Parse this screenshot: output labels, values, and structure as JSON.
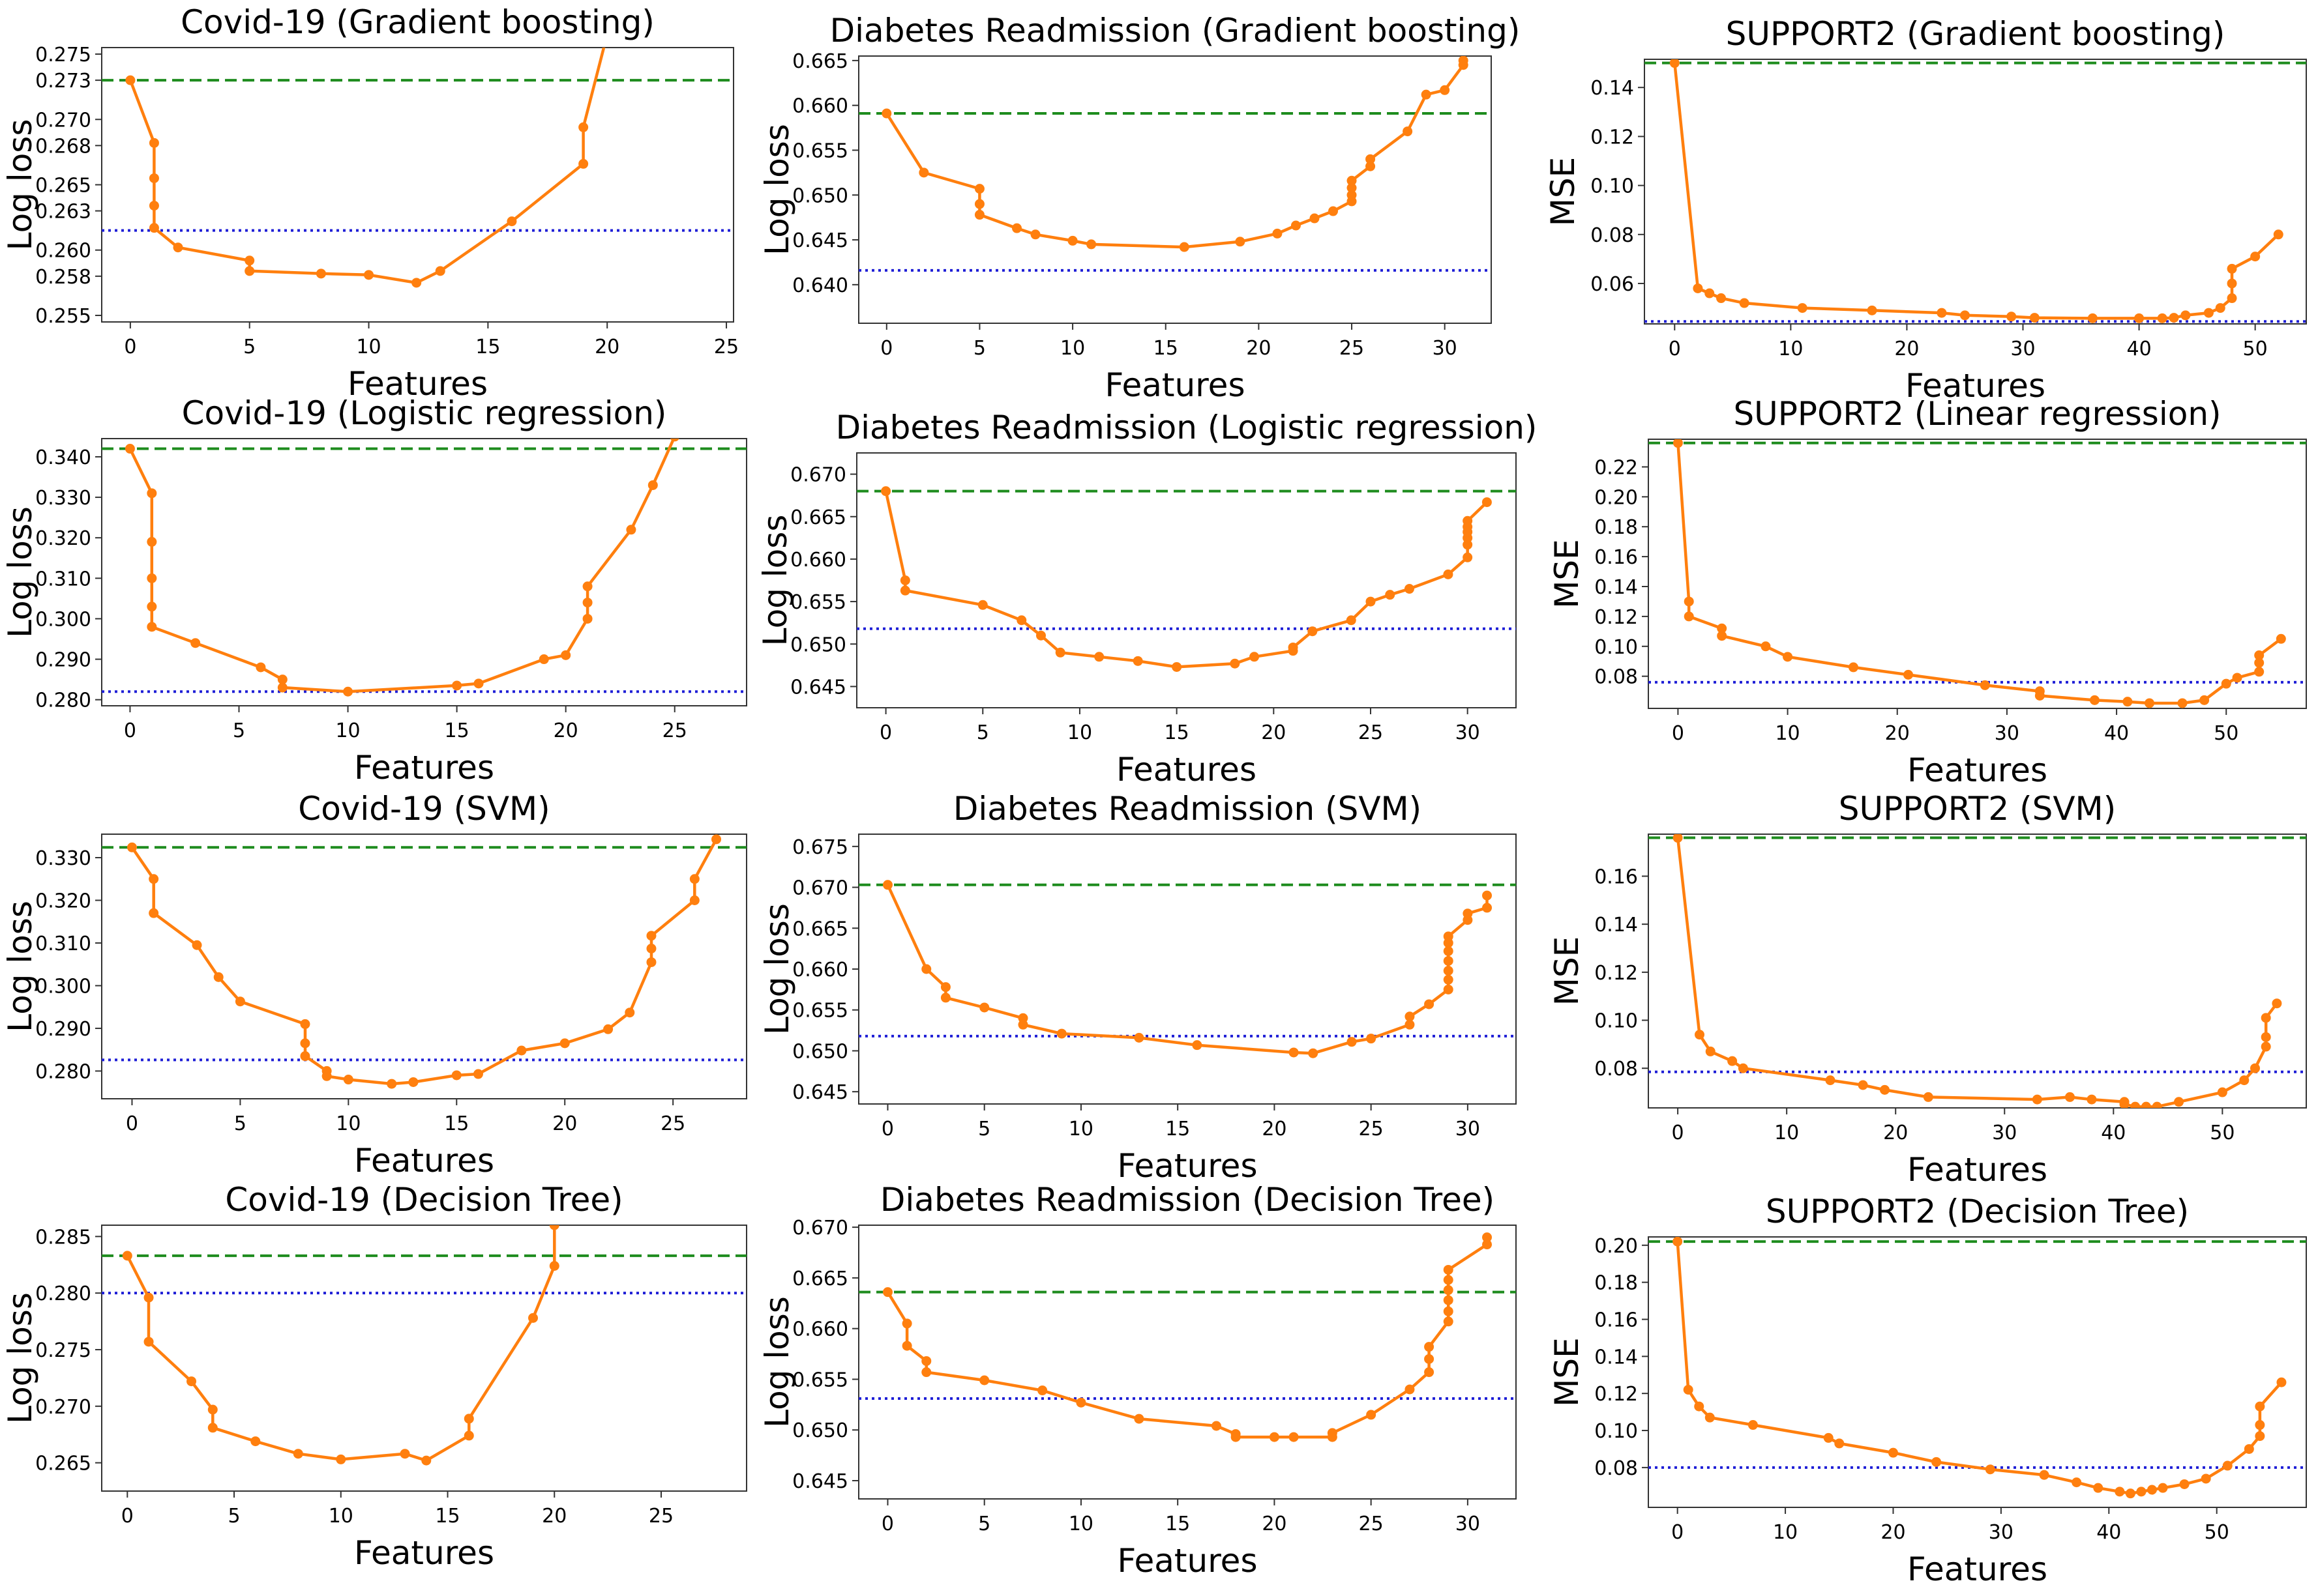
{
  "colors": {
    "line": "#ff7f0e",
    "initial": "#1e8c1e",
    "best": "#1f1fd6",
    "axis": "#333333"
  },
  "chart_data": [
    {
      "type": "line",
      "title": "Covid-19 (Gradient boosting)",
      "xlabel": "Features",
      "ylabel": "Log loss",
      "xlim": [
        -1.2,
        25.3
      ],
      "ylim": [
        0.2545,
        0.2755
      ],
      "xticks": [
        0,
        5,
        10,
        15,
        20,
        25
      ],
      "yticks": [
        0.255,
        0.258,
        0.26,
        0.263,
        0.265,
        0.268,
        0.27,
        0.273,
        0.275
      ],
      "yticklabels": [
        "0.255",
        "0.258",
        "0.260",
        "0.263",
        "0.265",
        "0.268",
        "0.270",
        "0.273",
        "0.275"
      ],
      "initial": 0.273,
      "best": 0.2615,
      "series": [
        {
          "x": [
            0,
            1,
            1,
            1,
            1,
            2,
            5,
            5,
            8,
            10,
            12,
            13,
            16,
            19,
            19,
            20
          ],
          "y": [
            0.273,
            0.2682,
            0.2655,
            0.2634,
            0.2617,
            0.2602,
            0.2592,
            0.2584,
            0.2582,
            0.2581,
            0.2575,
            0.2584,
            0.2622,
            0.2666,
            0.2694,
            0.2765
          ]
        }
      ]
    },
    {
      "type": "line",
      "title": "Diabetes Readmission (Gradient boosting)",
      "xlabel": "Features",
      "ylabel": "Log loss",
      "xlim": [
        -1.5,
        32.5
      ],
      "ylim": [
        0.6357,
        0.6655
      ],
      "xticks": [
        0,
        5,
        10,
        15,
        20,
        25,
        30
      ],
      "yticks": [
        0.64,
        0.645,
        0.65,
        0.655,
        0.66,
        0.665
      ],
      "yticklabels": [
        "0.640",
        "0.645",
        "0.650",
        "0.655",
        "0.660",
        "0.665"
      ],
      "initial": 0.6591,
      "best": 0.6416,
      "series": [
        {
          "x": [
            0,
            2,
            5,
            5,
            5,
            7,
            8,
            10,
            11,
            16,
            19,
            21,
            22,
            23,
            24,
            25,
            25,
            25,
            25,
            26,
            26,
            28,
            29,
            30,
            31,
            31
          ],
          "y": [
            0.6591,
            0.6525,
            0.6507,
            0.649,
            0.6478,
            0.6463,
            0.6456,
            0.6449,
            0.6445,
            0.6442,
            0.6448,
            0.6457,
            0.6466,
            0.6474,
            0.6482,
            0.6493,
            0.65,
            0.6508,
            0.6516,
            0.6532,
            0.654,
            0.6571,
            0.6612,
            0.6617,
            0.6645,
            0.665
          ]
        }
      ]
    },
    {
      "type": "line",
      "title": "SUPPORT2 (Gradient boosting)",
      "xlabel": "Features",
      "ylabel": "MSE",
      "xlim": [
        -2.6,
        54.4
      ],
      "ylim": [
        0.0435,
        0.1515
      ],
      "xticks": [
        0,
        10,
        20,
        30,
        40,
        50
      ],
      "yticks": [
        0.06,
        0.08,
        0.1,
        0.12,
        0.14
      ],
      "yticklabels": [
        "0.06",
        "0.08",
        "0.10",
        "0.12",
        "0.14"
      ],
      "initial": 0.15,
      "best": 0.0445,
      "series": [
        {
          "x": [
            0,
            2,
            3,
            4,
            6,
            11,
            17,
            23,
            25,
            29,
            31,
            36,
            40,
            42,
            43,
            44,
            46,
            47,
            48,
            48,
            48,
            50,
            52
          ],
          "y": [
            0.15,
            0.058,
            0.056,
            0.054,
            0.052,
            0.05,
            0.049,
            0.048,
            0.047,
            0.0465,
            0.046,
            0.0458,
            0.0458,
            0.0458,
            0.046,
            0.047,
            0.048,
            0.05,
            0.054,
            0.06,
            0.066,
            0.071,
            0.08
          ]
        }
      ]
    },
    {
      "type": "line",
      "title": "Covid-19 (Logistic regression)",
      "xlabel": "Features",
      "ylabel": "Log loss",
      "xlim": [
        -1.3,
        28.3
      ],
      "ylim": [
        0.2785,
        0.3445
      ],
      "xticks": [
        0,
        5,
        10,
        15,
        20,
        25
      ],
      "yticks": [
        0.28,
        0.29,
        0.3,
        0.31,
        0.32,
        0.33,
        0.34
      ],
      "yticklabels": [
        "0.280",
        "0.290",
        "0.300",
        "0.310",
        "0.320",
        "0.330",
        "0.340"
      ],
      "initial": 0.342,
      "best": 0.282,
      "series": [
        {
          "x": [
            0,
            1,
            1,
            1,
            1,
            1,
            3,
            6,
            7,
            7,
            10,
            15,
            16,
            19,
            20,
            21,
            21,
            21,
            23,
            24,
            25
          ],
          "y": [
            0.342,
            0.331,
            0.319,
            0.31,
            0.303,
            0.298,
            0.294,
            0.288,
            0.285,
            0.283,
            0.282,
            0.2835,
            0.284,
            0.29,
            0.291,
            0.3,
            0.304,
            0.308,
            0.322,
            0.333,
            0.345
          ]
        }
      ]
    },
    {
      "type": "line",
      "title": "Diabetes Readmission (Logistic regression)",
      "xlabel": "Features",
      "ylabel": "Log loss",
      "xlim": [
        -1.5,
        32.5
      ],
      "ylim": [
        0.6425,
        0.6725
      ],
      "xticks": [
        0,
        5,
        10,
        15,
        20,
        25,
        30
      ],
      "yticks": [
        0.645,
        0.65,
        0.655,
        0.66,
        0.665,
        0.67
      ],
      "yticklabels": [
        "0.645",
        "0.650",
        "0.655",
        "0.660",
        "0.665",
        "0.670"
      ],
      "initial": 0.668,
      "best": 0.6518,
      "series": [
        {
          "x": [
            0,
            1,
            1,
            5,
            7,
            8,
            9,
            11,
            13,
            15,
            18,
            19,
            21,
            21,
            22,
            24,
            25,
            26,
            27,
            29,
            30,
            30,
            30,
            30,
            30,
            30,
            31
          ],
          "y": [
            0.668,
            0.6575,
            0.6563,
            0.6546,
            0.6528,
            0.651,
            0.649,
            0.6485,
            0.648,
            0.6473,
            0.6477,
            0.6485,
            0.6492,
            0.6496,
            0.6515,
            0.6528,
            0.655,
            0.6558,
            0.6565,
            0.6582,
            0.6602,
            0.6617,
            0.6625,
            0.6632,
            0.6638,
            0.6645,
            0.6667
          ]
        }
      ]
    },
    {
      "type": "line",
      "title": "SUPPORT2 (Linear regression)",
      "xlabel": "Features",
      "ylabel": "MSE",
      "xlim": [
        -2.7,
        57.3
      ],
      "ylim": [
        0.0585,
        0.2385
      ],
      "xticks": [
        0,
        10,
        20,
        30,
        40,
        50
      ],
      "yticks": [
        0.08,
        0.1,
        0.12,
        0.14,
        0.16,
        0.18,
        0.2,
        0.22
      ],
      "yticklabels": [
        "0.08",
        "0.10",
        "0.12",
        "0.14",
        "0.16",
        "0.18",
        "0.20",
        "0.22"
      ],
      "initial": 0.236,
      "best": 0.076,
      "series": [
        {
          "x": [
            0,
            1,
            1,
            4,
            4,
            8,
            10,
            16,
            21,
            28,
            33,
            33,
            38,
            41,
            43,
            46,
            48,
            50,
            51,
            53,
            53,
            53,
            55
          ],
          "y": [
            0.236,
            0.13,
            0.12,
            0.112,
            0.107,
            0.1,
            0.093,
            0.086,
            0.081,
            0.074,
            0.07,
            0.067,
            0.064,
            0.063,
            0.062,
            0.062,
            0.064,
            0.075,
            0.079,
            0.083,
            0.089,
            0.094,
            0.105
          ]
        }
      ]
    },
    {
      "type": "line",
      "title": "Covid-19 (SVM)",
      "xlabel": "Features",
      "ylabel": "Log loss",
      "xlim": [
        -1.4,
        28.4
      ],
      "ylim": [
        0.2735,
        0.3355
      ],
      "xticks": [
        0,
        5,
        10,
        15,
        20,
        25
      ],
      "yticks": [
        0.28,
        0.29,
        0.3,
        0.31,
        0.32,
        0.33
      ],
      "yticklabels": [
        "0.280",
        "0.290",
        "0.300",
        "0.310",
        "0.320",
        "0.330"
      ],
      "initial": 0.3324,
      "best": 0.2826,
      "series": [
        {
          "x": [
            0,
            1,
            1,
            3,
            4,
            5,
            8,
            8,
            8,
            9,
            9,
            10,
            12,
            13,
            15,
            16,
            18,
            20,
            22,
            23,
            24,
            24,
            24,
            26,
            26,
            27
          ],
          "y": [
            0.3324,
            0.325,
            0.317,
            0.3095,
            0.302,
            0.2963,
            0.291,
            0.2865,
            0.2835,
            0.28,
            0.2788,
            0.278,
            0.277,
            0.2774,
            0.279,
            0.2793,
            0.2848,
            0.2865,
            0.2898,
            0.2937,
            0.3055,
            0.3087,
            0.3117,
            0.32,
            0.325,
            0.3343
          ]
        }
      ]
    },
    {
      "type": "line",
      "title": "Diabetes Readmission (SVM)",
      "xlabel": "Features",
      "ylabel": "Log loss",
      "xlim": [
        -1.5,
        32.5
      ],
      "ylim": [
        0.6435,
        0.6765
      ],
      "xticks": [
        0,
        5,
        10,
        15,
        20,
        25,
        30
      ],
      "yticks": [
        0.645,
        0.65,
        0.655,
        0.66,
        0.665,
        0.67,
        0.675
      ],
      "yticklabels": [
        "0.645",
        "0.650",
        "0.655",
        "0.660",
        "0.665",
        "0.670",
        "0.675"
      ],
      "initial": 0.6703,
      "best": 0.6518,
      "series": [
        {
          "x": [
            0,
            2,
            3,
            3,
            5,
            7,
            7,
            9,
            13,
            16,
            21,
            22,
            24,
            25,
            27,
            27,
            28,
            29,
            29,
            29,
            29,
            29,
            29,
            29,
            30,
            30,
            31,
            31
          ],
          "y": [
            0.6703,
            0.66,
            0.6578,
            0.6565,
            0.6553,
            0.654,
            0.6532,
            0.6521,
            0.6516,
            0.6507,
            0.6498,
            0.6497,
            0.6511,
            0.6515,
            0.6532,
            0.6542,
            0.6557,
            0.6575,
            0.6587,
            0.6598,
            0.661,
            0.6622,
            0.6632,
            0.664,
            0.666,
            0.6668,
            0.6675,
            0.669
          ]
        }
      ]
    },
    {
      "type": "line",
      "title": "SUPPORT2 (SVM)",
      "xlabel": "Features",
      "ylabel": "MSE",
      "xlim": [
        -2.7,
        57.7
      ],
      "ylim": [
        0.0635,
        0.1775
      ],
      "xticks": [
        0,
        10,
        20,
        30,
        40,
        50
      ],
      "yticks": [
        0.08,
        0.1,
        0.12,
        0.14,
        0.16
      ],
      "yticklabels": [
        "0.08",
        "0.10",
        "0.12",
        "0.14",
        "0.16"
      ],
      "initial": 0.176,
      "best": 0.0785,
      "series": [
        {
          "x": [
            0,
            2,
            3,
            5,
            6,
            14,
            17,
            19,
            23,
            33,
            36,
            38,
            41,
            41,
            42,
            43,
            44,
            46,
            50,
            52,
            53,
            54,
            54,
            54,
            55
          ],
          "y": [
            0.176,
            0.094,
            0.087,
            0.083,
            0.08,
            0.075,
            0.073,
            0.071,
            0.068,
            0.067,
            0.068,
            0.067,
            0.066,
            0.065,
            0.064,
            0.064,
            0.064,
            0.066,
            0.07,
            0.075,
            0.08,
            0.089,
            0.093,
            0.101,
            0.107
          ]
        }
      ]
    },
    {
      "type": "line",
      "title": "Covid-19 (Decision Tree)",
      "xlabel": "Features",
      "ylabel": "Log loss",
      "xlim": [
        -1.2,
        29.0
      ],
      "ylim": [
        0.2625,
        0.286
      ],
      "xticks": [
        0,
        5,
        10,
        15,
        20,
        25
      ],
      "yticks": [
        0.265,
        0.27,
        0.275,
        0.28,
        0.285
      ],
      "yticklabels": [
        "0.265",
        "0.270",
        "0.275",
        "0.280",
        "0.285"
      ],
      "initial": 0.2833,
      "best": 0.28,
      "series": [
        {
          "x": [
            0,
            1,
            1,
            3,
            4,
            4,
            6,
            8,
            10,
            13,
            14,
            16,
            16,
            19,
            20,
            20
          ],
          "y": [
            0.2833,
            0.2796,
            0.2757,
            0.2722,
            0.2697,
            0.2681,
            0.2669,
            0.2658,
            0.2653,
            0.2658,
            0.2652,
            0.2674,
            0.2689,
            0.2778,
            0.2824,
            0.286
          ]
        }
      ]
    },
    {
      "type": "line",
      "title": "Diabetes Readmission (Decision Tree)",
      "xlabel": "Features",
      "ylabel": "Log loss",
      "xlim": [
        -1.5,
        32.5
      ],
      "ylim": [
        0.6432,
        0.6702
      ],
      "xticks": [
        0,
        5,
        10,
        15,
        20,
        25,
        30
      ],
      "yticks": [
        0.645,
        0.65,
        0.655,
        0.66,
        0.665,
        0.67
      ],
      "yticklabels": [
        "0.645",
        "0.650",
        "0.655",
        "0.660",
        "0.665",
        "0.670"
      ],
      "initial": 0.6636,
      "best": 0.6531,
      "series": [
        {
          "x": [
            0,
            1,
            1,
            2,
            2,
            5,
            8,
            10,
            13,
            17,
            18,
            18,
            20,
            21,
            23,
            23,
            25,
            27,
            28,
            28,
            28,
            29,
            29,
            29,
            29,
            29,
            29,
            31,
            31
          ],
          "y": [
            0.6636,
            0.6605,
            0.6583,
            0.6568,
            0.6557,
            0.6549,
            0.6539,
            0.6527,
            0.6511,
            0.6504,
            0.6496,
            0.6493,
            0.6493,
            0.6493,
            0.6493,
            0.6497,
            0.6515,
            0.654,
            0.6557,
            0.657,
            0.6582,
            0.6607,
            0.6617,
            0.6628,
            0.6638,
            0.6648,
            0.6658,
            0.6683,
            0.669
          ]
        }
      ]
    },
    {
      "type": "line",
      "title": "SUPPORT2 (Decision Tree)",
      "xlabel": "Features",
      "ylabel": "MSE",
      "xlim": [
        -2.7,
        58.3
      ],
      "ylim": [
        0.0585,
        0.2045
      ],
      "xticks": [
        0,
        10,
        20,
        30,
        40,
        50
      ],
      "yticks": [
        0.08,
        0.1,
        0.12,
        0.14,
        0.16,
        0.18,
        0.2
      ],
      "yticklabels": [
        "0.08",
        "0.10",
        "0.12",
        "0.14",
        "0.16",
        "0.18",
        "0.20"
      ],
      "initial": 0.202,
      "best": 0.08,
      "series": [
        {
          "x": [
            0,
            1,
            2,
            3,
            7,
            14,
            15,
            20,
            24,
            29,
            34,
            37,
            39,
            41,
            42,
            43,
            44,
            45,
            47,
            49,
            51,
            53,
            54,
            54,
            54,
            56
          ],
          "y": [
            0.202,
            0.122,
            0.113,
            0.107,
            0.103,
            0.096,
            0.093,
            0.088,
            0.083,
            0.079,
            0.076,
            0.072,
            0.069,
            0.067,
            0.066,
            0.067,
            0.068,
            0.069,
            0.071,
            0.074,
            0.081,
            0.09,
            0.097,
            0.103,
            0.113,
            0.126
          ]
        }
      ]
    }
  ]
}
